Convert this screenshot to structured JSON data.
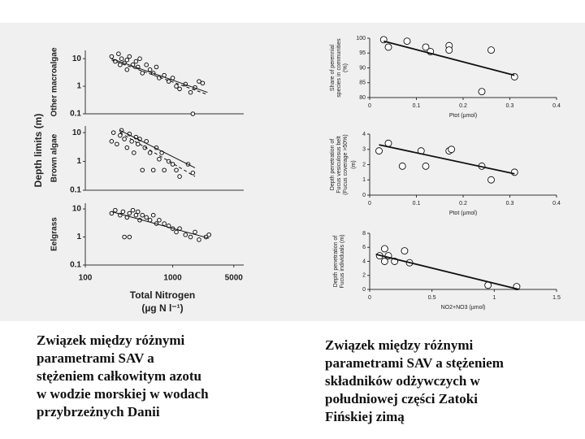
{
  "figure_left": {
    "ylabel": "Depth limits (m)"
  },
  "chart_data": [
    {
      "type": "scatter",
      "ylabel": "Other macroalgae",
      "xscale": "log",
      "yscale": "log",
      "xlim": [
        100,
        6500
      ],
      "ylim": [
        0.1,
        20
      ],
      "yticks": [
        0.1,
        1,
        10
      ],
      "x": [
        200,
        220,
        240,
        250,
        260,
        280,
        300,
        300,
        320,
        350,
        380,
        400,
        420,
        450,
        500,
        550,
        600,
        650,
        700,
        800,
        900,
        1000,
        1100,
        1200,
        1400,
        1600,
        1800,
        2000,
        2200,
        1700
      ],
      "y": [
        12,
        8,
        15,
        6,
        10,
        7,
        9,
        4,
        12,
        6,
        8,
        5,
        10,
        3,
        6,
        4,
        3,
        5,
        2,
        2.5,
        1.5,
        2,
        1,
        0.8,
        1.2,
        0.6,
        0.9,
        1.5,
        1.3,
        0.1
      ],
      "lines": [
        {
          "style": "solid",
          "x": [
            200,
            2500
          ],
          "y": [
            10,
            0.6
          ]
        },
        {
          "style": "dashed",
          "x": [
            200,
            2500
          ],
          "y": [
            9,
            0.5
          ]
        }
      ]
    },
    {
      "type": "scatter",
      "ylabel": "Brown algae",
      "xscale": "log",
      "yscale": "log",
      "xlim": [
        100,
        6500
      ],
      "ylim": [
        0.1,
        17
      ],
      "yticks": [
        0.1,
        1,
        10
      ],
      "x": [
        200,
        210,
        230,
        250,
        260,
        280,
        300,
        320,
        340,
        360,
        380,
        400,
        420,
        450,
        480,
        500,
        550,
        600,
        650,
        700,
        750,
        800,
        900,
        1000,
        1100,
        1200,
        1500,
        1700
      ],
      "y": [
        5,
        10,
        4,
        8,
        12,
        6,
        3,
        9,
        5,
        2,
        7,
        4,
        6,
        0.5,
        3,
        5,
        2,
        0.5,
        3,
        1.2,
        2,
        0.5,
        1,
        0.8,
        0.5,
        0.3,
        0.8,
        0.4
      ],
      "lines": [
        {
          "style": "solid",
          "x": [
            250,
            1800
          ],
          "y": [
            12,
            0.6
          ]
        },
        {
          "style": "dashed",
          "x": [
            250,
            1800
          ],
          "y": [
            10,
            0.3
          ]
        }
      ]
    },
    {
      "type": "scatter",
      "ylabel": "Eelgrass",
      "xlabel": "Total Nitrogen",
      "xlabel_unit": "(µg N l⁻¹)",
      "xscale": "log",
      "yscale": "log",
      "xlim": [
        100,
        6500
      ],
      "ylim": [
        0.1,
        16
      ],
      "yticks": [
        0.1,
        1,
        10
      ],
      "xticks": [
        100,
        1000,
        5000
      ],
      "x": [
        200,
        220,
        250,
        270,
        300,
        320,
        350,
        380,
        400,
        420,
        450,
        500,
        550,
        600,
        650,
        700,
        800,
        900,
        1000,
        1100,
        1200,
        1400,
        1600,
        1800,
        2000,
        2400,
        2600,
        280,
        320
      ],
      "y": [
        7,
        9,
        6,
        8,
        5,
        7,
        9,
        6,
        8,
        4,
        6,
        5,
        4,
        6,
        3,
        4,
        3,
        2.5,
        2,
        1.5,
        2,
        1.2,
        1,
        1.5,
        0.8,
        1,
        1.2,
        1,
        1
      ],
      "lines": [
        {
          "style": "solid",
          "x": [
            200,
            2600
          ],
          "y": [
            8,
            0.9
          ]
        }
      ]
    },
    {
      "type": "scatter",
      "ylabel": [
        "Share of perennial",
        "species in communities",
        "(%)"
      ],
      "xlabel": "Ptot (µmol)",
      "xlim": [
        0,
        0.4
      ],
      "ylim": [
        80,
        100
      ],
      "xticks": [
        0,
        0.1,
        0.2,
        0.3,
        0.4
      ],
      "yticks": [
        80,
        85,
        90,
        95,
        100
      ],
      "x": [
        0.03,
        0.04,
        0.08,
        0.12,
        0.13,
        0.17,
        0.17,
        0.26,
        0.24,
        0.31
      ],
      "y": [
        99.5,
        97,
        99,
        97,
        95.5,
        97.5,
        96,
        96,
        82,
        87
      ],
      "lines": [
        {
          "style": "solid",
          "x": [
            0.03,
            0.31
          ],
          "y": [
            99,
            87.5
          ]
        }
      ]
    },
    {
      "type": "scatter",
      "ylabel": [
        "Depth penetration of",
        "Fucus vesiculosus belt",
        "(Fucus coverage >50%)"
      ],
      "yunit": "(m)",
      "xlabel": "Ptot (µmol)",
      "xlim": [
        0,
        0.4
      ],
      "ylim": [
        0,
        4
      ],
      "xticks": [
        0,
        0.1,
        0.2,
        0.3,
        0.4
      ],
      "yticks": [
        0,
        1,
        2,
        3,
        4
      ],
      "x": [
        0.04,
        0.02,
        0.07,
        0.11,
        0.12,
        0.17,
        0.175,
        0.24,
        0.26,
        0.31
      ],
      "y": [
        3.4,
        2.9,
        1.9,
        2.9,
        1.9,
        2.9,
        3,
        1.9,
        1,
        1.5
      ],
      "lines": [
        {
          "style": "solid",
          "x": [
            0.02,
            0.31
          ],
          "y": [
            3.3,
            1.4
          ]
        }
      ]
    },
    {
      "type": "scatter",
      "ylabel": [
        "Depth penetration of",
        "Fucus individuals (m)"
      ],
      "xlabel": "NO2+NO3 (µmol)",
      "xlim": [
        0,
        1.5
      ],
      "ylim": [
        0,
        8
      ],
      "xticks": [
        0,
        0.5,
        1,
        1.5
      ],
      "yticks": [
        0,
        2,
        4,
        6,
        8
      ],
      "x": [
        0.08,
        0.12,
        0.12,
        0.15,
        0.2,
        0.28,
        0.32,
        0.95,
        1.18
      ],
      "y": [
        4.8,
        5.8,
        4,
        4.8,
        4,
        5.5,
        3.8,
        0.6,
        0.4
      ],
      "lines": [
        {
          "style": "solid",
          "x": [
            0.05,
            1.2
          ],
          "y": [
            5,
            0
          ]
        }
      ]
    }
  ],
  "captions": [
    [
      "Związek między różnymi",
      "parametrami SAV a",
      "stężeniem całkowitym azotu",
      "w wodzie morskiej w wodach",
      "przybrzeżnych Danii"
    ],
    [
      "Związek między różnymi",
      "parametrami SAV a stężeniem",
      "składników odżywczych w",
      "południowej części Zatoki",
      "Fińskiej zimą"
    ]
  ]
}
